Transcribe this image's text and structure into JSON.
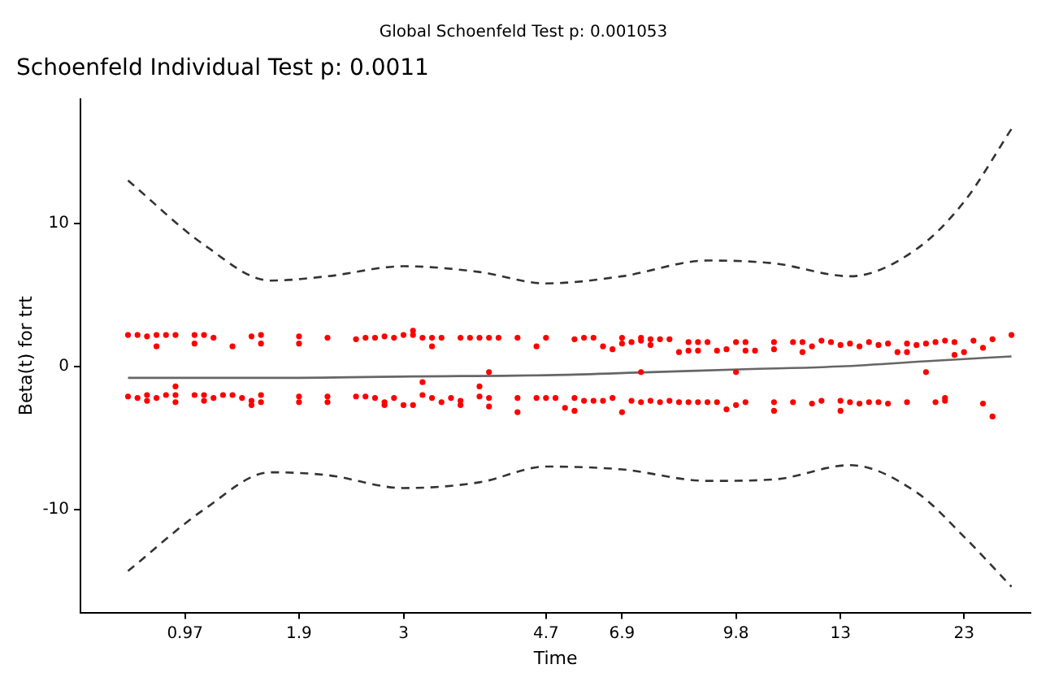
{
  "chart_data": {
    "type": "scatter",
    "title": "Global Schoenfeld Test p: 0.001053",
    "subtitle": "Schoenfeld Individual Test p: 0.0011",
    "xlabel": "Time",
    "ylabel": "Beta(t) for trt",
    "categories": [
      null,
      null,
      null,
      null,
      null,
      null,
      null,
      null,
      null,
      null,
      null,
      "0.97",
      null,
      null,
      null,
      null,
      null,
      null,
      null,
      null,
      null,
      null,
      null,
      "1.9",
      null,
      null,
      null,
      null,
      null,
      null,
      null,
      null,
      null,
      null,
      "3",
      null,
      null,
      null,
      null,
      null,
      null,
      null,
      null,
      null,
      null,
      null,
      null,
      null,
      null,
      "4.7",
      null,
      null,
      null,
      null,
      null,
      null,
      null,
      "6.9",
      null,
      null,
      null,
      null,
      null,
      null,
      null,
      null,
      null,
      null,
      null,
      "9.8",
      null,
      null,
      null,
      null,
      null,
      null,
      null,
      null,
      null,
      null,
      "13",
      null,
      null,
      null,
      null,
      null,
      null,
      null,
      null,
      null,
      null,
      null,
      null,
      "23",
      null,
      null,
      null,
      null,
      null,
      null,
      null
    ],
    "ylim": [
      -17.2,
      18.7
    ],
    "yticks": [
      -10,
      0,
      10
    ],
    "series": [
      {
        "type": "scatter",
        "color": "#ff0000",
        "marker": "circle",
        "values": [
          null,
          null,
          null,
          null,
          null,
          2.2,
          2.2,
          2.1,
          1.4,
          2.2,
          2.2,
          null,
          2.2,
          2.2,
          2.0,
          null,
          1.4,
          null,
          2.1,
          2.2,
          null,
          null,
          null,
          2.1,
          null,
          null,
          2.0,
          null,
          null,
          1.9,
          2.0,
          2.0,
          2.1,
          2.0,
          2.2,
          2.5,
          2.0,
          2.0,
          2.0,
          null,
          2.0,
          2.0,
          2.0,
          2.0,
          2.0,
          null,
          2.0,
          null,
          1.4,
          2.0,
          null,
          null,
          1.9,
          2.0,
          2.0,
          1.4,
          1.2,
          2.0,
          1.7,
          1.8,
          1.9,
          1.9,
          1.9,
          1.0,
          1.7,
          1.7,
          1.7,
          1.1,
          1.2,
          1.7,
          1.7,
          1.1,
          null,
          1.7,
          null,
          1.7,
          1.0,
          1.4,
          1.8,
          1.7,
          1.5,
          1.6,
          1.4,
          1.7,
          1.5,
          1.6,
          1.0,
          1.0,
          1.5,
          1.6,
          1.7,
          1.8,
          1.7,
          1.0,
          1.8,
          1.3,
          1.9,
          null,
          2.2,
          null,
          null
        ]
      },
      {
        "type": "scatter",
        "color": "#ff0000",
        "marker": "circle",
        "values": [
          null,
          null,
          null,
          null,
          null,
          null,
          null,
          null,
          2.2,
          null,
          null,
          null,
          1.6,
          null,
          null,
          null,
          null,
          null,
          null,
          1.6,
          null,
          null,
          null,
          1.6,
          null,
          null,
          null,
          null,
          null,
          null,
          null,
          null,
          null,
          null,
          null,
          2.2,
          null,
          1.4,
          null,
          null,
          null,
          null,
          null,
          null,
          null,
          null,
          null,
          null,
          null,
          null,
          null,
          null,
          null,
          null,
          null,
          null,
          null,
          1.6,
          null,
          2.0,
          1.5,
          null,
          null,
          null,
          1.1,
          1.1,
          null,
          null,
          null,
          null,
          1.1,
          null,
          null,
          1.2,
          null,
          null,
          1.7,
          null,
          null,
          null,
          null,
          null,
          null,
          null,
          null,
          null,
          null,
          1.6,
          null,
          null,
          null,
          null,
          0.8,
          null,
          null,
          null,
          null,
          null,
          null,
          null,
          null
        ]
      },
      {
        "type": "scatter",
        "color": "#ff0000",
        "marker": "circle",
        "values": [
          null,
          null,
          null,
          null,
          null,
          -2.1,
          -2.2,
          -2.0,
          -2.2,
          -2.0,
          -1.4,
          null,
          -2.0,
          -2.0,
          -2.2,
          -2.0,
          -2.0,
          -2.2,
          -2.4,
          -2.0,
          null,
          null,
          null,
          -2.1,
          null,
          null,
          -2.1,
          null,
          null,
          -2.1,
          -2.1,
          -2.2,
          -2.5,
          -2.2,
          -2.7,
          -2.7,
          -1.1,
          -2.2,
          -2.5,
          -2.2,
          -2.4,
          null,
          -2.1,
          -2.2,
          null,
          null,
          -2.2,
          null,
          -2.2,
          -2.2,
          -2.2,
          -2.9,
          -2.2,
          -2.4,
          -2.4,
          -2.4,
          -2.2,
          -3.2,
          -2.4,
          -2.5,
          -2.4,
          -2.5,
          -2.4,
          -2.5,
          -2.5,
          -2.5,
          -2.5,
          -2.5,
          -3.0,
          -2.7,
          -2.5,
          null,
          null,
          -2.5,
          null,
          -2.5,
          null,
          -2.6,
          -2.4,
          null,
          -2.4,
          -2.5,
          -2.6,
          -2.5,
          -2.5,
          -2.6,
          null,
          -2.5,
          null,
          -0.4,
          -2.5,
          -2.4,
          null,
          null,
          null,
          -2.6,
          -3.5,
          null,
          null,
          null,
          null
        ]
      },
      {
        "type": "scatter",
        "color": "#ff0000",
        "marker": "circle",
        "values": [
          null,
          null,
          null,
          null,
          null,
          null,
          null,
          -2.4,
          null,
          null,
          -2.5,
          null,
          null,
          -2.4,
          null,
          null,
          null,
          null,
          -2.7,
          -2.5,
          null,
          null,
          null,
          -2.5,
          null,
          null,
          -2.5,
          null,
          null,
          null,
          null,
          null,
          -2.7,
          null,
          null,
          null,
          -2.0,
          null,
          null,
          null,
          -2.7,
          null,
          -1.4,
          -2.8,
          null,
          null,
          -3.2,
          null,
          null,
          null,
          null,
          null,
          -3.1,
          null,
          null,
          null,
          null,
          null,
          null,
          -0.4,
          null,
          null,
          null,
          null,
          null,
          null,
          null,
          null,
          null,
          -0.4,
          null,
          null,
          null,
          -3.1,
          null,
          null,
          null,
          null,
          null,
          null,
          -3.1,
          null,
          null,
          null,
          null,
          null,
          null,
          null,
          null,
          null,
          null,
          -2.2,
          null,
          null,
          null,
          null,
          null,
          null,
          null,
          null,
          null
        ]
      },
      {
        "type": "scatter",
        "color": "#ff0000",
        "marker": "circle",
        "values": [
          null,
          null,
          null,
          null,
          null,
          null,
          null,
          null,
          null,
          null,
          -2.0,
          null,
          null,
          null,
          null,
          null,
          null,
          null,
          null,
          null,
          null,
          null,
          null,
          null,
          null,
          null,
          null,
          null,
          null,
          null,
          null,
          null,
          null,
          null,
          null,
          null,
          null,
          null,
          null,
          null,
          null,
          null,
          null,
          -0.4,
          null,
          null,
          null,
          null,
          null,
          null,
          null,
          null,
          null,
          null,
          null,
          null,
          null,
          null,
          null,
          null,
          null,
          null,
          null,
          null,
          null,
          null,
          null,
          null,
          null,
          null,
          null,
          null,
          null,
          null,
          null,
          null,
          null,
          null,
          null,
          null,
          null,
          null,
          null,
          null,
          null,
          null,
          null,
          null,
          null,
          null,
          null,
          null,
          null,
          null,
          null,
          null,
          null,
          null,
          null,
          null,
          null
        ]
      },
      {
        "type": "line",
        "color": "#666666",
        "line_style": "solid",
        "values": [
          null,
          null,
          null,
          null,
          null,
          -0.8,
          null,
          null,
          null,
          null,
          null,
          null,
          null,
          null,
          null,
          null,
          null,
          null,
          null,
          null,
          -0.8,
          null,
          null,
          null,
          null,
          null,
          null,
          null,
          null,
          null,
          null,
          null,
          null,
          null,
          null,
          -0.7,
          null,
          null,
          null,
          null,
          null,
          null,
          null,
          null,
          null,
          null,
          null,
          null,
          null,
          null,
          -0.6,
          null,
          null,
          null,
          null,
          null,
          null,
          null,
          null,
          null,
          -0.4,
          null,
          null,
          null,
          null,
          null,
          null,
          null,
          null,
          null,
          -0.2,
          null,
          null,
          null,
          null,
          null,
          null,
          null,
          null,
          null,
          0.0,
          null,
          null,
          null,
          null,
          null,
          null,
          null,
          null,
          null,
          0.4,
          null,
          null,
          null,
          null,
          null,
          null,
          null,
          0.7,
          null,
          null
        ]
      },
      {
        "type": "line",
        "color": "#333333",
        "line_style": "dashed",
        "values": [
          null,
          null,
          null,
          null,
          null,
          13.0,
          null,
          null,
          null,
          null,
          null,
          null,
          null,
          8.5,
          null,
          null,
          null,
          null,
          null,
          null,
          6.0,
          null,
          null,
          null,
          null,
          null,
          6.3,
          null,
          null,
          null,
          null,
          null,
          null,
          null,
          7.0,
          null,
          null,
          null,
          null,
          null,
          null,
          null,
          6.6,
          null,
          null,
          null,
          null,
          null,
          null,
          5.8,
          null,
          null,
          null,
          null,
          null,
          null,
          null,
          6.3,
          null,
          null,
          null,
          null,
          null,
          null,
          null,
          null,
          7.4,
          null,
          null,
          null,
          null,
          null,
          null,
          7.2,
          null,
          null,
          null,
          null,
          null,
          null,
          null,
          6.3,
          null,
          null,
          null,
          null,
          null,
          null,
          8.2,
          null,
          null,
          null,
          null,
          11.5,
          null,
          null,
          null,
          null,
          16.6,
          null,
          null
        ]
      },
      {
        "type": "line",
        "color": "#333333",
        "line_style": "dashed",
        "values": [
          null,
          null,
          null,
          null,
          null,
          -14.3,
          null,
          null,
          null,
          null,
          null,
          null,
          null,
          -10.0,
          null,
          null,
          null,
          null,
          null,
          null,
          -7.4,
          null,
          null,
          null,
          null,
          null,
          -7.6,
          null,
          null,
          null,
          null,
          null,
          null,
          null,
          -8.5,
          null,
          null,
          null,
          null,
          null,
          null,
          null,
          -8.1,
          null,
          null,
          null,
          null,
          null,
          null,
          -7.0,
          null,
          null,
          null,
          null,
          null,
          null,
          null,
          -7.2,
          null,
          null,
          null,
          null,
          null,
          null,
          null,
          null,
          -8.0,
          null,
          null,
          null,
          null,
          null,
          null,
          -7.9,
          null,
          null,
          null,
          null,
          null,
          null,
          null,
          -6.9,
          null,
          null,
          null,
          null,
          null,
          null,
          -8.8,
          null,
          null,
          null,
          null,
          -11.9,
          null,
          null,
          null,
          null,
          -15.4,
          null,
          null
        ]
      }
    ]
  }
}
